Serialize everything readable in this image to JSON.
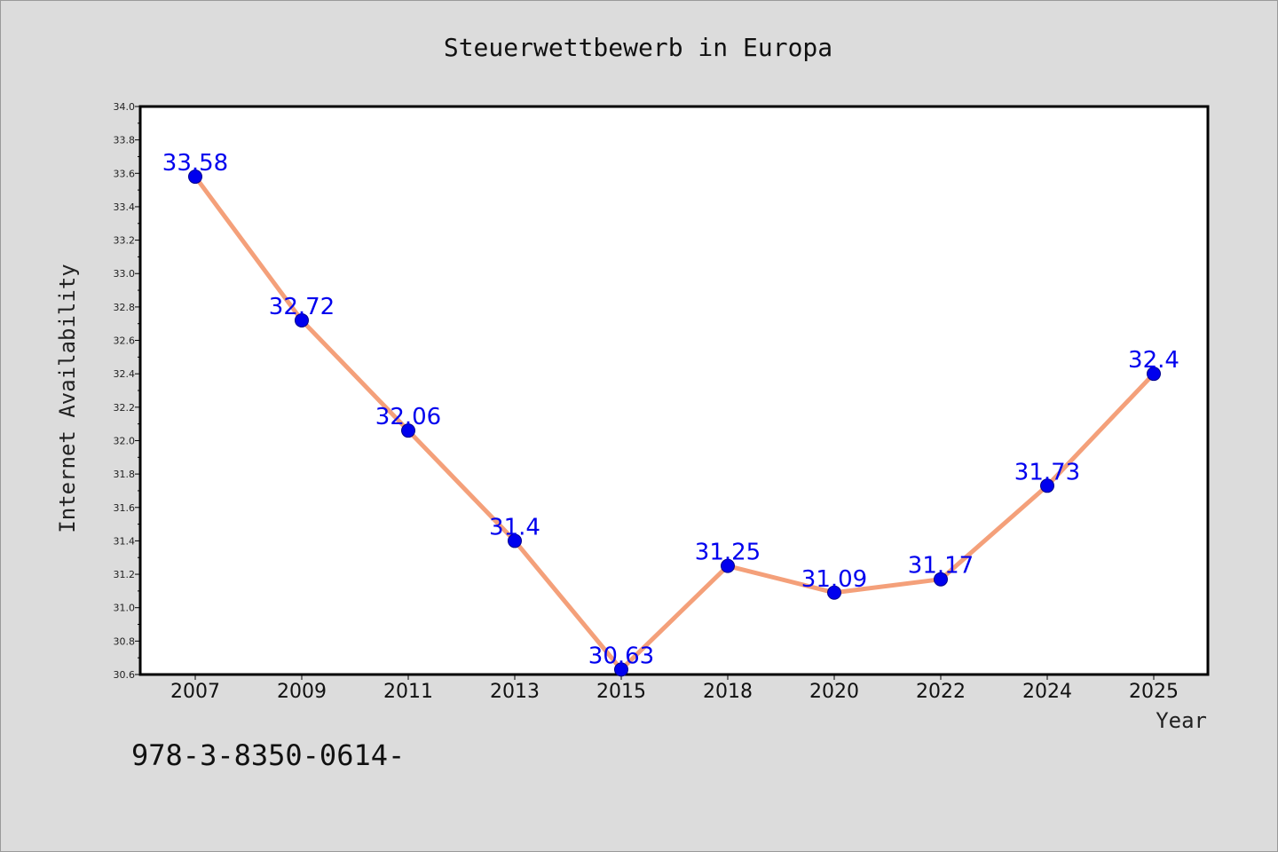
{
  "colors": {
    "background": "#dcdcdc",
    "plot_background": "#ffffff",
    "line": "#f4a07a",
    "marker": "#0000ee",
    "data_label": "#0000ee"
  },
  "footer_text": "978-3-8350-0614-",
  "chart_data": {
    "type": "line",
    "title": "Steuerwettbewerb in Europa",
    "xlabel": "Year",
    "ylabel": "Internet Availability",
    "categories": [
      "2007",
      "2009",
      "2011",
      "2013",
      "2015",
      "2018",
      "2020",
      "2022",
      "2024",
      "2025"
    ],
    "series": [
      {
        "values": [
          33.58,
          32.72,
          32.06,
          31.4,
          30.63,
          31.25,
          31.09,
          31.17,
          31.73,
          32.4
        ],
        "labels": [
          "33.58",
          "32.72",
          "32.06",
          "31.4",
          "30.63",
          "31.25",
          "31.09",
          "31.17",
          "31.73",
          "32.4"
        ]
      }
    ],
    "ylim": [
      30.6,
      34.0
    ],
    "yticks": [
      "30.6",
      "30.8",
      "31.0",
      "31.2",
      "31.4",
      "31.6",
      "31.8",
      "32.0",
      "32.2",
      "32.4",
      "32.6",
      "32.8",
      "33.0",
      "33.2",
      "33.4",
      "33.6",
      "33.8",
      "34.0"
    ],
    "grid": false,
    "legend": "none"
  }
}
